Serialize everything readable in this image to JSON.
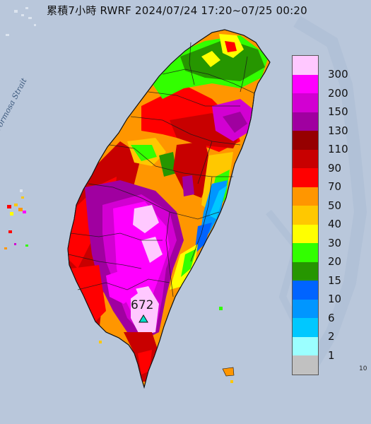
{
  "title": "累積7小時 RWRF 2024/07/24 17:20~07/25 00:20",
  "sea_label": "Formosa Strait",
  "max_marker": {
    "value": "672",
    "icon": "triangle-marker-icon"
  },
  "edge_text": "10",
  "legend": {
    "items": [
      {
        "label": "300",
        "color": "#ffc8ff"
      },
      {
        "label": "200",
        "color": "#ff00ff"
      },
      {
        "label": "150",
        "color": "#d200d2"
      },
      {
        "label": "130",
        "color": "#a000a0"
      },
      {
        "label": "110",
        "color": "#960000"
      },
      {
        "label": "90",
        "color": "#c80000"
      },
      {
        "label": "70",
        "color": "#ff0000"
      },
      {
        "label": "50",
        "color": "#ff9600"
      },
      {
        "label": "40",
        "color": "#ffc800"
      },
      {
        "label": "30",
        "color": "#ffff00"
      },
      {
        "label": "20",
        "color": "#32ff00"
      },
      {
        "label": "15",
        "color": "#269600"
      },
      {
        "label": "10",
        "color": "#0064ff"
      },
      {
        "label": "6",
        "color": "#0096ff"
      },
      {
        "label": "2",
        "color": "#00c8ff"
      },
      {
        "label": "1",
        "color": "#9bffff"
      },
      {
        "label": "",
        "color": "#c1c1c1"
      }
    ]
  }
}
